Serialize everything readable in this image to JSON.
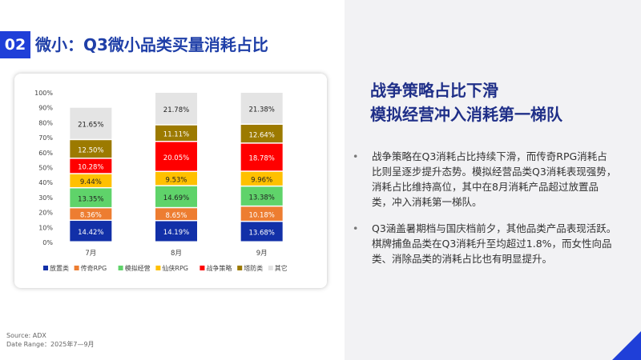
{
  "section": {
    "number": "02",
    "title": "微小：Q3微小品类买量消耗占比"
  },
  "source": {
    "line1": "Source: ADX",
    "line2": "Date Range：2025年7—9月"
  },
  "headline": {
    "line1": "战争策略占比下滑",
    "line2": "模拟经营冲入消耗第一梯队"
  },
  "bullets": [
    {
      "text": "战争策略在Q3消耗占比持续下滑，而传奇RPG消耗占比则呈逐步提升态势。模拟经营品类Q3消耗表现强势，消耗占比维持高位，其中在8月消耗产品超过放置品类，冲入消耗第一梯队。"
    },
    {
      "text": "Q3涵盖暑期档与国庆档前夕，其他品类产品表现活跃。棋牌捕鱼品类在Q3消耗升至均超过1.8%，而女性向品类、消除品类的消耗占比也有明显提升。"
    }
  ],
  "bullet_symbol": "•",
  "chart_data": {
    "type": "bar",
    "stacked": true,
    "categories": [
      "7月",
      "8月",
      "9月"
    ],
    "series": [
      {
        "name": "放置类",
        "color": "#1230a8",
        "values": [
          14.42,
          14.19,
          13.68
        ],
        "labels": [
          "14.42%",
          "14.19%",
          "13.68%"
        ]
      },
      {
        "name": "传奇RPG",
        "color": "#ed7d31",
        "values": [
          8.36,
          8.65,
          10.18
        ],
        "labels": [
          "8.36%",
          "8.65%",
          "10.18%"
        ]
      },
      {
        "name": "模拟经营",
        "color": "#5fd36a",
        "values": [
          13.35,
          14.69,
          13.38
        ],
        "labels": [
          "13.35%",
          "14.69%",
          "13.38%"
        ]
      },
      {
        "name": "仙侠RPG",
        "color": "#ffc000",
        "values": [
          9.44,
          9.53,
          9.96
        ],
        "labels": [
          "9.44%",
          "9.53%",
          "9.96%"
        ]
      },
      {
        "name": "战争策略",
        "color": "#ff0000",
        "values": [
          10.28,
          20.05,
          18.78
        ],
        "labels": [
          "10.28%",
          "20.05%",
          "18.78%"
        ]
      },
      {
        "name": "塔防类",
        "color": "#9c7a00",
        "values": [
          12.5,
          11.11,
          12.64
        ],
        "labels": [
          "12.50%",
          "11.11%",
          "12.64%"
        ]
      },
      {
        "name": "其它",
        "color": "#e4e4e4",
        "values": [
          21.65,
          21.78,
          21.38
        ],
        "labels": [
          "21.65%",
          "21.78%",
          "21.38%"
        ]
      }
    ],
    "yticks": [
      "0%",
      "10%",
      "20%",
      "30%",
      "40%",
      "50%",
      "60%",
      "70%",
      "80%",
      "90%",
      "100%"
    ],
    "ylim": [
      0,
      100
    ],
    "legend_position": "bottom",
    "grid": false
  }
}
